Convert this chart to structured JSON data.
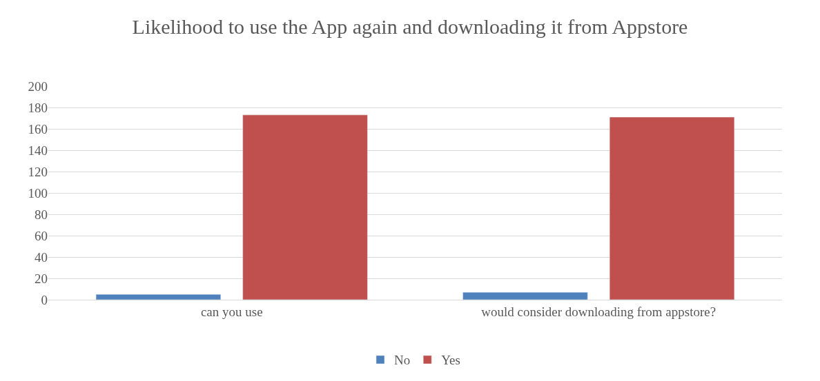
{
  "chart_data": {
    "type": "bar",
    "title": "Likelihood to use the App again and downloading it from Appstore",
    "categories": [
      "can you use",
      "would consider downloading from appstore?"
    ],
    "series": [
      {
        "name": "No",
        "color": "#4f81bd",
        "values": [
          5,
          7
        ]
      },
      {
        "name": "Yes",
        "color": "#c0504d",
        "values": [
          173,
          171
        ]
      }
    ],
    "ylim": [
      0,
      200
    ],
    "yticks": [
      0,
      20,
      40,
      60,
      80,
      100,
      120,
      140,
      160,
      180,
      200
    ],
    "grid": "y",
    "legend": "bottom"
  }
}
